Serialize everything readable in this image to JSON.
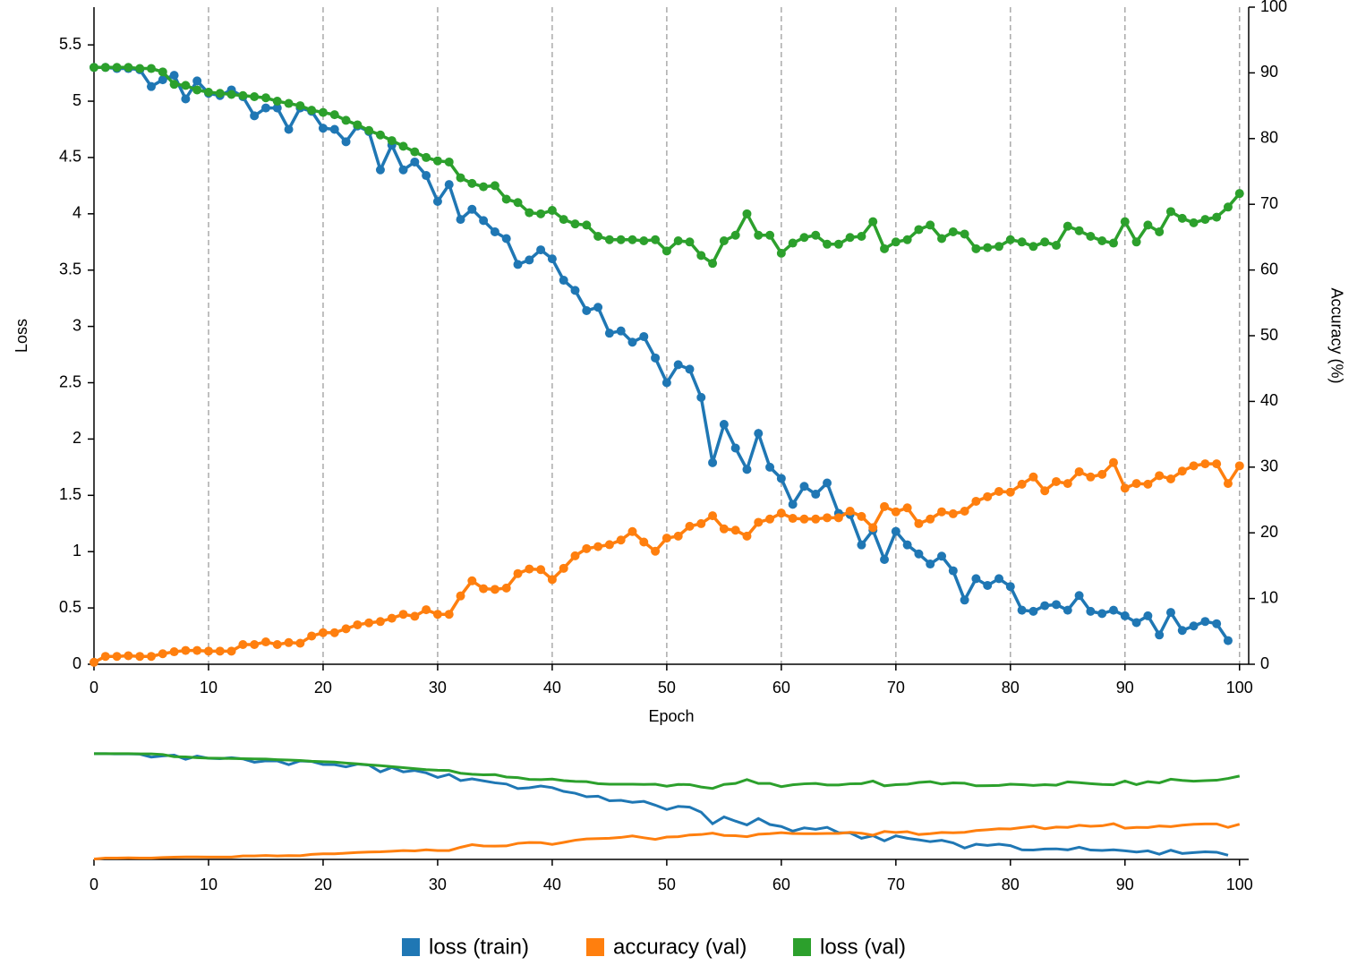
{
  "chart_data": {
    "type": "line",
    "xlabel": "Epoch",
    "ylabel": "Loss",
    "y2label": "Accuracy (%)",
    "x": [
      0,
      1,
      2,
      3,
      4,
      5,
      6,
      7,
      8,
      9,
      10,
      11,
      12,
      13,
      14,
      15,
      16,
      17,
      18,
      19,
      20,
      21,
      22,
      23,
      24,
      25,
      26,
      27,
      28,
      29,
      30,
      31,
      32,
      33,
      34,
      35,
      36,
      37,
      38,
      39,
      40,
      41,
      42,
      43,
      44,
      45,
      46,
      47,
      48,
      49,
      50,
      51,
      52,
      53,
      54,
      55,
      56,
      57,
      58,
      59,
      60,
      61,
      62,
      63,
      64,
      65,
      66,
      67,
      68,
      69,
      70,
      71,
      72,
      73,
      74,
      75,
      76,
      77,
      78,
      79,
      80,
      81,
      82,
      83,
      84,
      85,
      86,
      87,
      88,
      89,
      90,
      91,
      92,
      93,
      94,
      95,
      96,
      97,
      98,
      99,
      100
    ],
    "series": [
      {
        "name": "loss (train)",
        "color": "#1f77b4",
        "axis": "y",
        "values": [
          5.3,
          5.3,
          5.29,
          5.29,
          5.28,
          5.13,
          5.19,
          5.23,
          5.02,
          5.18,
          5.07,
          5.05,
          5.1,
          5.04,
          4.87,
          4.94,
          4.94,
          4.75,
          4.94,
          4.91,
          4.76,
          4.75,
          4.64,
          4.78,
          4.73,
          4.39,
          4.61,
          4.39,
          4.46,
          4.34,
          4.11,
          4.26,
          3.95,
          4.04,
          3.94,
          3.84,
          3.78,
          3.55,
          3.59,
          3.68,
          3.6,
          3.41,
          3.32,
          3.14,
          3.17,
          2.94,
          2.96,
          2.86,
          2.91,
          2.72,
          2.5,
          2.66,
          2.62,
          2.37,
          1.79,
          2.13,
          1.92,
          1.73,
          2.05,
          1.75,
          1.65,
          1.42,
          1.58,
          1.51,
          1.61,
          1.34,
          1.33,
          1.06,
          1.19,
          0.93,
          1.18,
          1.06,
          0.98,
          0.89,
          0.96,
          0.83,
          0.57,
          0.76,
          0.7,
          0.76,
          0.69,
          0.48,
          0.47,
          0.52,
          0.53,
          0.48,
          0.61,
          0.47,
          0.45,
          0.48,
          0.43,
          0.37,
          0.43,
          0.26,
          0.46,
          0.3,
          0.34,
          0.38,
          0.36,
          0.21,
          null
        ]
      },
      {
        "name": "accuracy (val)",
        "color": "#ff7f0e",
        "axis": "y2",
        "values": [
          0.3,
          1.2,
          1.2,
          1.3,
          1.2,
          1.2,
          1.6,
          1.9,
          2.1,
          2.1,
          2.0,
          2.0,
          2.0,
          3.0,
          3.0,
          3.4,
          3.0,
          3.3,
          3.2,
          4.3,
          4.8,
          4.8,
          5.4,
          6.0,
          6.3,
          6.5,
          7.0,
          7.6,
          7.3,
          8.3,
          7.6,
          7.6,
          10.4,
          12.7,
          11.5,
          11.4,
          11.6,
          13.8,
          14.5,
          14.4,
          12.9,
          14.6,
          16.5,
          17.6,
          17.9,
          18.2,
          18.9,
          20.2,
          18.6,
          17.2,
          19.2,
          19.5,
          21.0,
          21.4,
          22.6,
          20.6,
          20.4,
          19.5,
          21.6,
          22.1,
          23.0,
          22.2,
          22.1,
          22.1,
          22.3,
          22.3,
          23.3,
          22.5,
          20.8,
          24.0,
          23.2,
          23.8,
          21.4,
          22.1,
          23.2,
          22.9,
          23.3,
          24.8,
          25.5,
          26.3,
          26.2,
          27.4,
          28.5,
          26.4,
          27.8,
          27.5,
          29.3,
          28.5,
          28.9,
          30.7,
          26.8,
          27.5,
          27.4,
          28.7,
          28.2,
          29.4,
          30.2,
          30.5,
          30.5,
          27.5,
          30.2
        ]
      },
      {
        "name": "loss (val)",
        "color": "#2ca02c",
        "axis": "y",
        "values": [
          5.3,
          5.3,
          5.3,
          5.3,
          5.29,
          5.29,
          5.26,
          5.15,
          5.14,
          5.1,
          5.08,
          5.07,
          5.06,
          5.05,
          5.04,
          5.03,
          5.0,
          4.98,
          4.96,
          4.92,
          4.9,
          4.88,
          4.83,
          4.79,
          4.74,
          4.7,
          4.65,
          4.6,
          4.55,
          4.5,
          4.47,
          4.46,
          4.32,
          4.27,
          4.24,
          4.25,
          4.13,
          4.1,
          4.01,
          4.0,
          4.03,
          3.95,
          3.91,
          3.9,
          3.8,
          3.77,
          3.77,
          3.77,
          3.76,
          3.77,
          3.67,
          3.76,
          3.75,
          3.63,
          3.56,
          3.76,
          3.81,
          4.0,
          3.81,
          3.81,
          3.65,
          3.74,
          3.79,
          3.81,
          3.73,
          3.73,
          3.79,
          3.8,
          3.93,
          3.69,
          3.75,
          3.77,
          3.86,
          3.9,
          3.78,
          3.84,
          3.82,
          3.69,
          3.7,
          3.71,
          3.77,
          3.75,
          3.71,
          3.75,
          3.72,
          3.89,
          3.85,
          3.8,
          3.76,
          3.74,
          3.93,
          3.75,
          3.9,
          3.84,
          4.02,
          3.96,
          3.92,
          3.95,
          3.97,
          4.06,
          4.18
        ]
      }
    ],
    "xlim": [
      0,
      100.8
    ],
    "xticks": [
      0,
      10,
      20,
      30,
      40,
      50,
      60,
      70,
      80,
      90,
      100
    ],
    "ylim": [
      0,
      5.835
    ],
    "yticks": [
      0,
      0.5,
      1,
      1.5,
      2,
      2.5,
      3,
      3.5,
      4,
      4.5,
      5,
      5.5
    ],
    "y2lim": [
      0,
      100
    ],
    "y2ticks": [
      0,
      10,
      20,
      30,
      40,
      50,
      60,
      70,
      80,
      90,
      100
    ],
    "grid": "x",
    "legend": "bottom"
  }
}
